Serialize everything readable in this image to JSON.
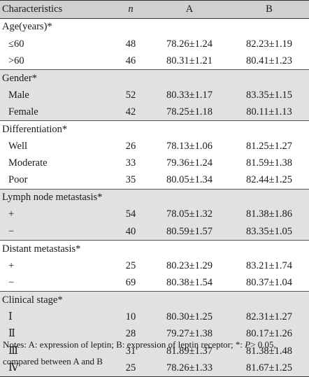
{
  "headers": {
    "characteristics": "Characteristics",
    "n": "n",
    "a": "A",
    "b": "B"
  },
  "groups": [
    {
      "title": "Age(years)*",
      "rows": [
        {
          "label": "≤60",
          "n": "48",
          "a": "78.26±1.24",
          "b": "82.23±1.19"
        },
        {
          "label": ">60",
          "n": "46",
          "a": "80.31±1.21",
          "b": "80.41±1.23"
        }
      ]
    },
    {
      "title": "Gender*",
      "rows": [
        {
          "label": "Male",
          "n": "52",
          "a": "80.33±1.17",
          "b": "83.35±1.15"
        },
        {
          "label": "Female",
          "n": "42",
          "a": "78.25±1.18",
          "b": "80.11±1.13"
        }
      ]
    },
    {
      "title": "Differentiation*",
      "rows": [
        {
          "label": "Well",
          "n": "26",
          "a": "78.13±1.06",
          "b": "81.25±1.27"
        },
        {
          "label": "Moderate",
          "n": "33",
          "a": "79.36±1.24",
          "b": "81.59±1.38"
        },
        {
          "label": "Poor",
          "n": "35",
          "a": "80.05±1.34",
          "b": "82.44±1.25"
        }
      ]
    },
    {
      "title": "Lymph node metastasis*",
      "rows": [
        {
          "label": "+",
          "n": "54",
          "a": "78.05±1.32",
          "b": "81.38±1.86"
        },
        {
          "label": "−",
          "n": "40",
          "a": "80.59±1.57",
          "b": "83.35±1.05"
        }
      ]
    },
    {
      "title": "Distant metastasis*",
      "rows": [
        {
          "label": "+",
          "n": "25",
          "a": "80.23±1.29",
          "b": "83.21±1.74"
        },
        {
          "label": "−",
          "n": "69",
          "a": "80.38±1.54",
          "b": "80.37±1.04"
        }
      ]
    },
    {
      "title": "Clinical stage*",
      "rows": [
        {
          "label": "Ⅰ",
          "n": "10",
          "a": "80.30±1.25",
          "b": "82.31±1.27"
        },
        {
          "label": "Ⅱ",
          "n": "28",
          "a": "79.27±1.38",
          "b": "80.17±1.26"
        },
        {
          "label": "Ⅲ",
          "n": "31",
          "a": "81.89±1.37",
          "b": "81.38±1.48"
        },
        {
          "label": "Ⅳ",
          "n": "25",
          "a": "78.26±1.33",
          "b": "81.67±1.25"
        }
      ]
    }
  ],
  "notes": {
    "prefix": "Notes: A: expression of leptin; B: expression of leptin receptor; *: ",
    "p_symbol": "P",
    "suffix": "> 0.05, compared between A and B"
  }
}
